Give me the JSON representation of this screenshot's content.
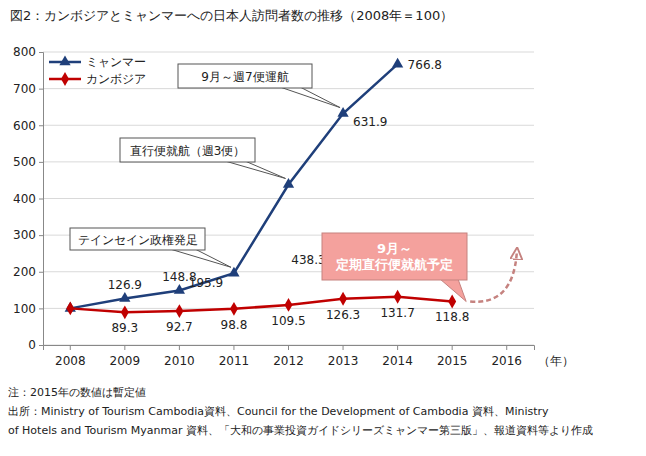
{
  "chart_data": {
    "type": "line",
    "title": "図2：カンボジアとミャンマーへの日本人訪問者数の推移（2008年＝100）",
    "categories": [
      "2008",
      "2009",
      "2010",
      "2011",
      "2012",
      "2013",
      "2014",
      "2015",
      "2016"
    ],
    "x_label": "（年）",
    "series": [
      {
        "name": "ミャンマー",
        "color": "#1f3f7a",
        "marker": "triangle",
        "values": [
          100,
          126.9,
          148.8,
          195.9,
          438.3,
          631.9,
          766.8,
          null,
          null
        ],
        "value_labels": [
          null,
          "126.9",
          "148.8",
          "195.9",
          "438.3",
          "631.9",
          "766.8",
          null,
          null
        ]
      },
      {
        "name": "カンボジア",
        "color": "#c00000",
        "marker": "diamond",
        "values": [
          100,
          89.3,
          92.7,
          98.8,
          109.5,
          126.3,
          131.7,
          118.8,
          null
        ],
        "value_labels": [
          null,
          "89.3",
          "92.7",
          "98.8",
          "109.5",
          "126.3",
          "131.7",
          "118.8",
          null
        ]
      }
    ],
    "ylim": [
      0,
      800
    ],
    "yticks": [
      0,
      100,
      200,
      300,
      400,
      500,
      600,
      700,
      800
    ],
    "grid": true,
    "legend": "upper left",
    "annotations": [
      {
        "lines": [
          "テインセイン政権発足"
        ],
        "x": "2011",
        "series": "ミャンマー"
      },
      {
        "lines": [
          "直行便就航（週3便）"
        ],
        "x": "2012",
        "series": "ミャンマー"
      },
      {
        "lines": [
          "9月～週7便運航"
        ],
        "x": "2013",
        "series": "ミャンマー"
      },
      {
        "lines": [
          "9月～",
          "定期直行便就航予定"
        ],
        "x": "2015",
        "series": "カンボジア",
        "color": "#f4a19d"
      }
    ],
    "notes": [
      "注：2015年の数値は暫定値",
      "出所：Ministry of Tourism Cambodia資料、Council for the Development of Cambodia 資料、Ministry",
      "of Hotels and Tourism Myanmar 資料、「大和の事業投資ガイドシリーズミャンマー第三版」、報道資料等より作成"
    ]
  }
}
